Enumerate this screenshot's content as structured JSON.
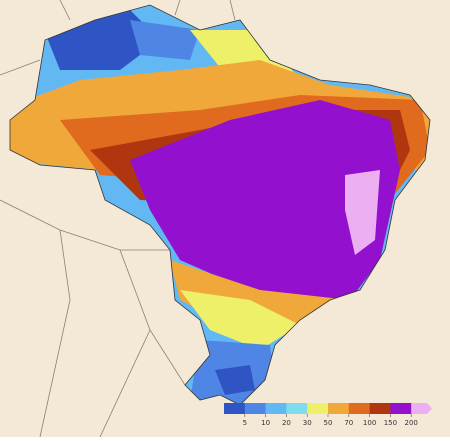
{
  "colorbar": {
    "ticks": [
      5,
      10,
      20,
      30,
      50,
      70,
      100,
      150,
      200
    ],
    "colors": [
      "#2f55c4",
      "#4f86e6",
      "#62b8f2",
      "#7fdcef",
      "#eef06a",
      "#f0a83a",
      "#e06a1e",
      "#b0360f",
      "#9410cf",
      "#ecb0f2"
    ]
  }
}
